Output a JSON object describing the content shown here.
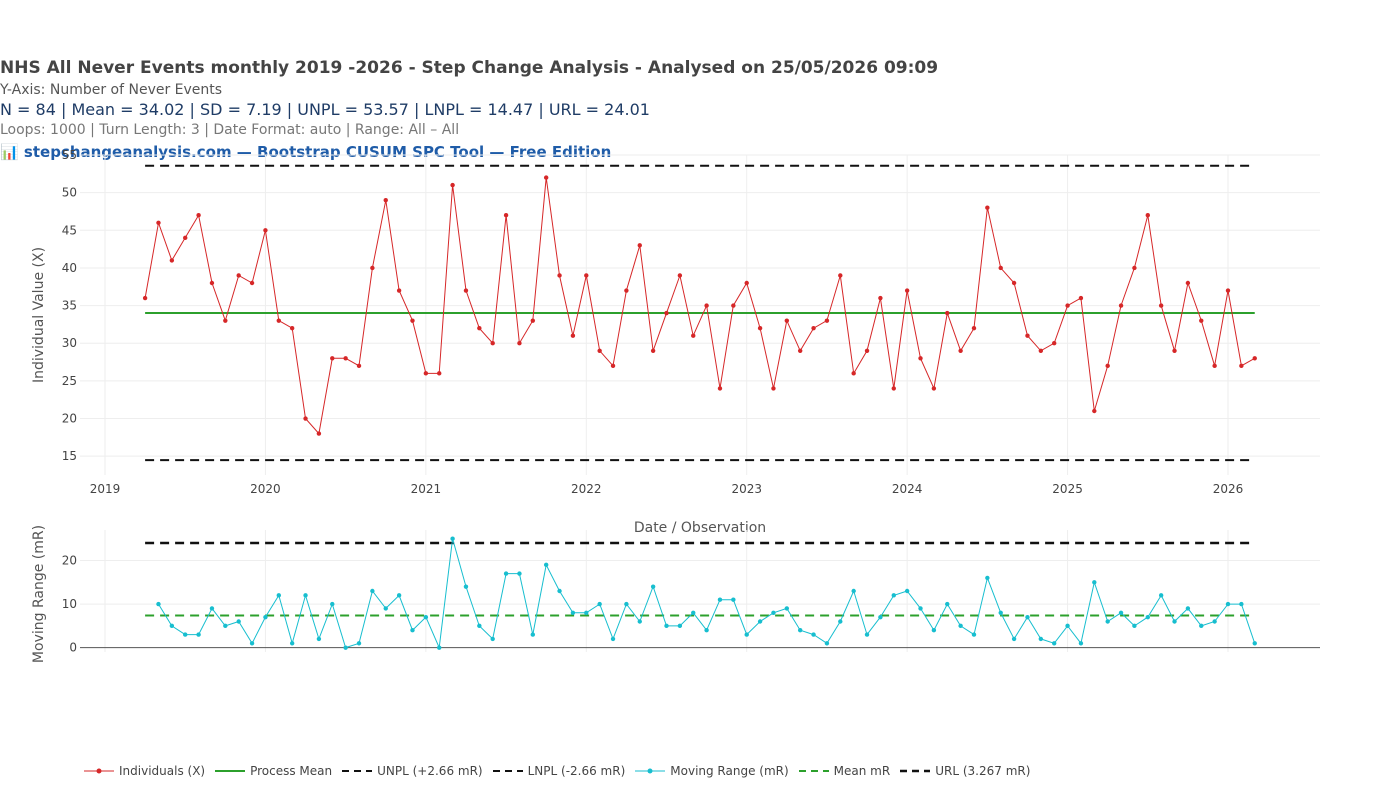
{
  "header": {
    "title": "NHS All Never Events monthly  2019 -2026 - Step Change Analysis - Analysed on 25/05/2026 09:09",
    "yaxis_note": "Y-Axis: Number of Never Events",
    "stats": "N = 84  |  Mean = 34.02  |  SD = 7.19  |  UNPL = 53.57  |  LNPL = 14.47  |  URL = 24.01",
    "params": "Loops: 1000  |  Turn Length: 3  |  Date Format: auto  |  Range: All – All",
    "brand_icon": "📊",
    "brand": "stepchangeanalysis.com — Bootstrap CUSUM SPC Tool — Free Edition"
  },
  "colors": {
    "individuals": "#d62728",
    "mean": "#2ca02c",
    "limits": "#111111",
    "moving_range": "#17becf",
    "mean_mr": "#2ca02c",
    "grid": "#eeeeee"
  },
  "chart_data": [
    {
      "type": "line",
      "name": "individuals-chart",
      "xlabel": "Date / Observation",
      "ylabel": "Individual Value (X)",
      "x_ticks": [
        "2019",
        "2020",
        "2021",
        "2022",
        "2023",
        "2024",
        "2025",
        "2026"
      ],
      "x_start": "2019-04",
      "y_ticks": [
        15,
        20,
        25,
        30,
        35,
        40,
        45,
        50,
        55
      ],
      "ylim": [
        12.5,
        55
      ],
      "series": [
        {
          "name": "Individuals (X)",
          "values": [
            36,
            46,
            41,
            44,
            47,
            38,
            33,
            39,
            38,
            45,
            33,
            32,
            20,
            18,
            28,
            28,
            27,
            40,
            49,
            37,
            33,
            26,
            26,
            51,
            37,
            32,
            30,
            47,
            30,
            33,
            52,
            39,
            31,
            39,
            29,
            27,
            37,
            43,
            29,
            34,
            39,
            31,
            35,
            24,
            35,
            38,
            32,
            24,
            33,
            29,
            32,
            33,
            39,
            26,
            29,
            36,
            24,
            37,
            28,
            24,
            34,
            29,
            32,
            48,
            40,
            38,
            31,
            29,
            30,
            35,
            36,
            21,
            27,
            35,
            40,
            47,
            35,
            29,
            38,
            33,
            27,
            37,
            27,
            28
          ]
        }
      ],
      "mean": 34.02,
      "unpl": 53.57,
      "lnpl": 14.47
    },
    {
      "type": "line",
      "name": "moving-range-chart",
      "ylabel": "Moving Range (mR)",
      "y_ticks": [
        0,
        10,
        20
      ],
      "ylim": [
        -1,
        27
      ],
      "series": [
        {
          "name": "Moving Range (mR)",
          "values": [
            10,
            5,
            3,
            3,
            9,
            5,
            6,
            1,
            7,
            12,
            1,
            12,
            2,
            10,
            0,
            1,
            13,
            9,
            12,
            4,
            7,
            0,
            25,
            14,
            5,
            2,
            17,
            17,
            3,
            19,
            13,
            8,
            8,
            10,
            2,
            10,
            6,
            14,
            5,
            5,
            8,
            4,
            11,
            11,
            3,
            6,
            8,
            9,
            4,
            3,
            1,
            6,
            13,
            3,
            7,
            12,
            13,
            9,
            4,
            10,
            5,
            3,
            16,
            8,
            2,
            7,
            2,
            1,
            5,
            1,
            15,
            6,
            8,
            5,
            7,
            12,
            6,
            9,
            5,
            6,
            10,
            10,
            1
          ]
        }
      ],
      "mean_mr": 7.39,
      "url": 24.01
    }
  ],
  "legend": [
    {
      "label": "Individuals (X)",
      "style": "line-marker",
      "color": "#d62728"
    },
    {
      "label": "Process Mean",
      "style": "solid",
      "color": "#2ca02c"
    },
    {
      "label": "UNPL (+2.66 mR)",
      "style": "dash",
      "color": "#111111"
    },
    {
      "label": "LNPL (-2.66 mR)",
      "style": "dash",
      "color": "#111111"
    },
    {
      "label": "Moving Range (mR)",
      "style": "line-marker",
      "color": "#17becf"
    },
    {
      "label": "Mean mR",
      "style": "dash",
      "color": "#2ca02c"
    },
    {
      "label": "URL (3.267 mR)",
      "style": "dash-thick",
      "color": "#111111"
    }
  ]
}
